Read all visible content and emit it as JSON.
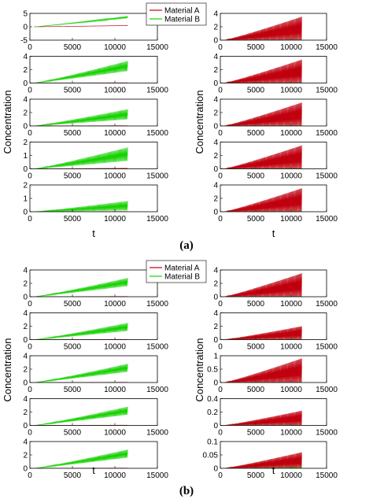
{
  "figure": {
    "legend": [
      {
        "name": "Material A",
        "color": "#c0000e"
      },
      {
        "name": "Material B",
        "color": "#15d100"
      }
    ]
  },
  "chart_data": [
    {
      "type": "line",
      "panel_label": "(a)",
      "xlabel": "t",
      "ylabel": "Concentration",
      "xlim": [
        0,
        15000
      ],
      "xticks": [
        "0",
        "5000",
        "10000",
        "15000"
      ],
      "x_end": 11500,
      "grid": false,
      "legend_position": "top (between columns)",
      "series_names": [
        "Material A",
        "Material B"
      ],
      "columns": [
        {
          "column": "left",
          "subplots": [
            {
              "ylim": [
                -5,
                5
              ],
              "yticks": [
                "-5",
                "0",
                "5"
              ],
              "series": [
                {
                  "name": "Material A",
                  "start": 0,
                  "end": 0.5,
                  "amplitude": 0.1
                },
                {
                  "name": "Material B",
                  "start": 0,
                  "end": 4.0,
                  "amplitude": 0.8
                }
              ]
            },
            {
              "ylim": [
                0,
                4
              ],
              "yticks": [
                "0",
                "2",
                "4"
              ],
              "series": [
                {
                  "name": "Material A",
                  "start": 0,
                  "end": 0.05,
                  "amplitude": 0.05
                },
                {
                  "name": "Material B",
                  "start": 0,
                  "end": 3.3,
                  "amplitude": 1.5
                }
              ]
            },
            {
              "ylim": [
                0,
                4
              ],
              "yticks": [
                "0",
                "2",
                "4"
              ],
              "series": [
                {
                  "name": "Material A",
                  "start": 0,
                  "end": 0.05,
                  "amplitude": 0.05
                },
                {
                  "name": "Material B",
                  "start": 0,
                  "end": 2.5,
                  "amplitude": 1.5
                }
              ]
            },
            {
              "ylim": [
                0,
                2
              ],
              "yticks": [
                "0",
                "1",
                "2"
              ],
              "series": [
                {
                  "name": "Material A",
                  "start": 0,
                  "end": 0.05,
                  "amplitude": 0.05
                },
                {
                  "name": "Material B",
                  "start": 0,
                  "end": 1.6,
                  "amplitude": 1.0
                }
              ]
            },
            {
              "ylim": [
                0,
                2
              ],
              "yticks": [
                "0",
                "1",
                "2"
              ],
              "series": [
                {
                  "name": "Material A",
                  "start": 0,
                  "end": 0.02,
                  "amplitude": 0.02
                },
                {
                  "name": "Material B",
                  "start": 0,
                  "end": 0.8,
                  "amplitude": 0.7
                }
              ]
            }
          ]
        },
        {
          "column": "right",
          "subplots": [
            {
              "ylim": [
                0,
                4
              ],
              "yticks": [
                "0",
                "2",
                "4"
              ],
              "series": [
                {
                  "name": "Material A",
                  "start": 0,
                  "end": 3.5,
                  "amplitude": 3.5
                },
                {
                  "name": "Material B",
                  "start": 0,
                  "end": 0.05,
                  "amplitude": 0.05
                }
              ]
            },
            {
              "ylim": [
                0,
                4
              ],
              "yticks": [
                "0",
                "2",
                "4"
              ],
              "series": [
                {
                  "name": "Material A",
                  "start": 0,
                  "end": 3.5,
                  "amplitude": 3.5
                },
                {
                  "name": "Material B",
                  "start": 0,
                  "end": 0.05,
                  "amplitude": 0.05
                }
              ]
            },
            {
              "ylim": [
                0,
                4
              ],
              "yticks": [
                "0",
                "2",
                "4"
              ],
              "series": [
                {
                  "name": "Material A",
                  "start": 0,
                  "end": 3.5,
                  "amplitude": 3.5
                },
                {
                  "name": "Material B",
                  "start": 0,
                  "end": 0.05,
                  "amplitude": 0.05
                }
              ]
            },
            {
              "ylim": [
                0,
                4
              ],
              "yticks": [
                "0",
                "2",
                "4"
              ],
              "series": [
                {
                  "name": "Material A",
                  "start": 0,
                  "end": 3.5,
                  "amplitude": 3.5
                },
                {
                  "name": "Material B",
                  "start": 0,
                  "end": 0.05,
                  "amplitude": 0.05
                }
              ]
            },
            {
              "ylim": [
                0,
                4
              ],
              "yticks": [
                "0",
                "2",
                "4"
              ],
              "series": [
                {
                  "name": "Material A",
                  "start": 0,
                  "end": 3.5,
                  "amplitude": 3.5
                },
                {
                  "name": "Material B",
                  "start": 0,
                  "end": 0.05,
                  "amplitude": 0.05
                }
              ]
            }
          ]
        }
      ]
    },
    {
      "type": "line",
      "panel_label": "(b)",
      "xlabel": "t",
      "ylabel": "Concentration",
      "xlim": [
        0,
        15000
      ],
      "xticks": [
        "0",
        "5000",
        "10000",
        "15000"
      ],
      "x_end": 11500,
      "grid": false,
      "legend_position": "top (between columns)",
      "series_names": [
        "Material A",
        "Material B"
      ],
      "columns": [
        {
          "column": "left",
          "subplots": [
            {
              "ylim": [
                0,
                4
              ],
              "yticks": [
                "0",
                "2",
                "4"
              ],
              "series": [
                {
                  "name": "Material A",
                  "start": 0,
                  "end": 0.05,
                  "amplitude": 0.05
                },
                {
                  "name": "Material B",
                  "start": 0,
                  "end": 2.8,
                  "amplitude": 1.2
                }
              ]
            },
            {
              "ylim": [
                0,
                4
              ],
              "yticks": [
                "0",
                "2",
                "4"
              ],
              "series": [
                {
                  "name": "Material A",
                  "start": 0,
                  "end": 0.05,
                  "amplitude": 0.05
                },
                {
                  "name": "Material B",
                  "start": 0,
                  "end": 2.5,
                  "amplitude": 1.2
                }
              ]
            },
            {
              "ylim": [
                0,
                4
              ],
              "yticks": [
                "0",
                "2",
                "4"
              ],
              "series": [
                {
                  "name": "Material A",
                  "start": 0,
                  "end": 0.05,
                  "amplitude": 0.05
                },
                {
                  "name": "Material B",
                  "start": 0,
                  "end": 2.8,
                  "amplitude": 1.2
                }
              ]
            },
            {
              "ylim": [
                0,
                4
              ],
              "yticks": [
                "0",
                "2",
                "4"
              ],
              "series": [
                {
                  "name": "Material A",
                  "start": 0,
                  "end": 0.05,
                  "amplitude": 0.05
                },
                {
                  "name": "Material B",
                  "start": 0,
                  "end": 2.8,
                  "amplitude": 1.2
                }
              ]
            },
            {
              "ylim": [
                0,
                4
              ],
              "yticks": [
                "0",
                "2",
                "4"
              ],
              "series": [
                {
                  "name": "Material A",
                  "start": 0,
                  "end": 0.05,
                  "amplitude": 0.05
                },
                {
                  "name": "Material B",
                  "start": 0,
                  "end": 2.8,
                  "amplitude": 1.2
                }
              ]
            }
          ]
        },
        {
          "column": "right",
          "subplots": [
            {
              "ylim": [
                0,
                4
              ],
              "yticks": [
                "0",
                "2",
                "4"
              ],
              "series": [
                {
                  "name": "Material A",
                  "start": 0,
                  "end": 3.5,
                  "amplitude": 3.5
                },
                {
                  "name": "Material B",
                  "start": 0,
                  "end": 0.05,
                  "amplitude": 0.05
                }
              ]
            },
            {
              "ylim": [
                0,
                4
              ],
              "yticks": [
                "0",
                "2",
                "4"
              ],
              "series": [
                {
                  "name": "Material A",
                  "start": 0,
                  "end": 2.0,
                  "amplitude": 2.0
                },
                {
                  "name": "Material B",
                  "start": 0,
                  "end": 0.05,
                  "amplitude": 0.05
                }
              ]
            },
            {
              "ylim": [
                0,
                1
              ],
              "yticks": [
                "0",
                "0.5",
                "1"
              ],
              "series": [
                {
                  "name": "Material A",
                  "start": 0,
                  "end": 0.9,
                  "amplitude": 0.9
                },
                {
                  "name": "Material B",
                  "start": 0,
                  "end": 0.01,
                  "amplitude": 0.01
                }
              ]
            },
            {
              "ylim": [
                0,
                0.4
              ],
              "yticks": [
                "0",
                "0.2",
                "0.4"
              ],
              "series": [
                {
                  "name": "Material A",
                  "start": 0,
                  "end": 0.22,
                  "amplitude": 0.22
                },
                {
                  "name": "Material B",
                  "start": 0,
                  "end": 0.005,
                  "amplitude": 0.005
                }
              ]
            },
            {
              "ylim": [
                0,
                0.1
              ],
              "yticks": [
                "0",
                "0.05",
                "0.1"
              ],
              "series": [
                {
                  "name": "Material A",
                  "start": 0,
                  "end": 0.06,
                  "amplitude": 0.06
                },
                {
                  "name": "Material B",
                  "start": 0,
                  "end": 0.003,
                  "amplitude": 0.003
                }
              ]
            }
          ]
        }
      ]
    }
  ]
}
